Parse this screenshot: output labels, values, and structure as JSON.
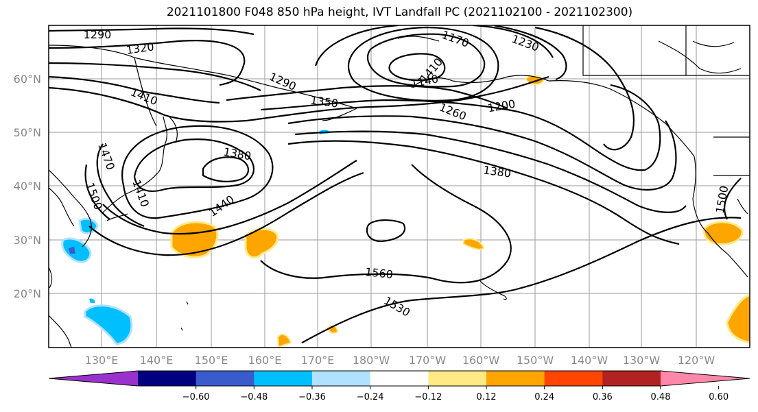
{
  "title": "2021101800 F048 850 hPa height, IVT Landfall PC (2021102100 - 2021102300)",
  "lat_labels": [
    "60°N",
    "50°N",
    "40°N",
    "30°N",
    "20°N"
  ],
  "lon_labels": [
    "130°E",
    "140°E",
    "150°E",
    "160°E",
    "170°E",
    "180°W",
    "170°W",
    "160°W",
    "150°W",
    "140°W",
    "130°W",
    "120°W"
  ],
  "contour_labels": [
    "1290",
    "1320",
    "1170",
    "1230",
    "1290",
    "1410",
    "1140",
    "1410",
    "1350",
    "1200",
    "1260",
    "1380",
    "1470",
    "1410",
    "1500",
    "1440",
    "1380",
    "1500",
    "1560",
    "1530"
  ],
  "colorbar": {
    "colors": [
      "#9932cc",
      "#000080",
      "#3a5bcc",
      "#00bfff",
      "#b0e2ff",
      "#ffffff",
      "#ffea86",
      "#ffa500",
      "#ff4500",
      "#b22222",
      "#ff88aa"
    ],
    "tick_labels": [
      "−0.60",
      "−0.48",
      "−0.36",
      "−0.24",
      "−0.12",
      "0.12",
      "0.24",
      "0.36",
      "0.48",
      "0.60"
    ]
  }
}
